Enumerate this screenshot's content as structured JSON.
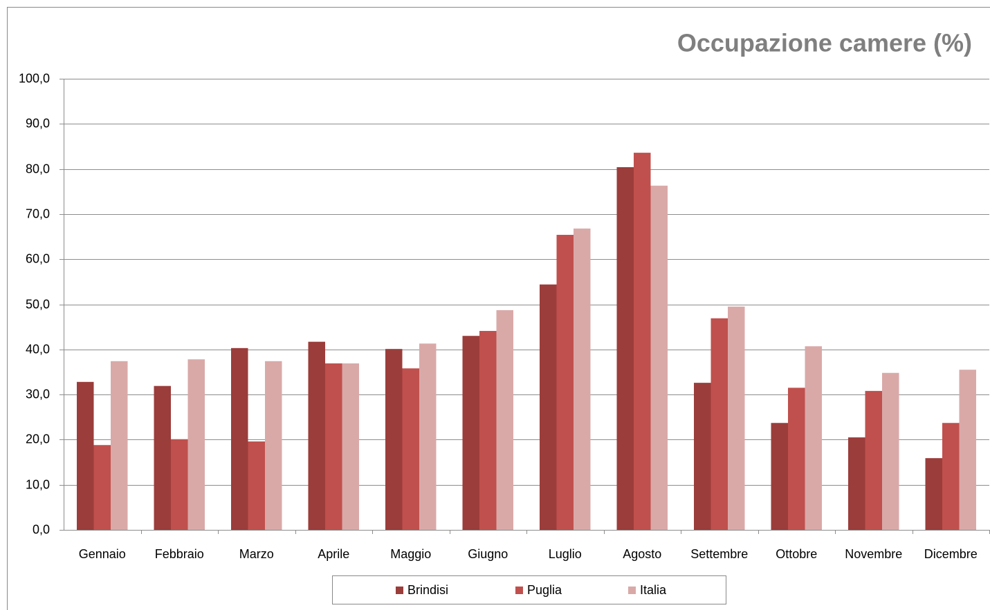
{
  "chart_data": {
    "type": "bar",
    "title": "Occupazione camere  (%)",
    "categories": [
      "Gennaio",
      "Febbraio",
      "Marzo",
      "Aprile",
      "Maggio",
      "Giugno",
      "Luglio",
      "Agosto",
      "Settembre",
      "Ottobre",
      "Novembre",
      "Dicembre"
    ],
    "series": [
      {
        "name": "Brindisi",
        "color": "#9b3d3b",
        "values": [
          32.8,
          31.9,
          40.3,
          41.7,
          40.1,
          43.0,
          54.4,
          80.4,
          32.6,
          23.7,
          20.5,
          15.9
        ]
      },
      {
        "name": "Puglia",
        "color": "#c0504d",
        "values": [
          18.8,
          20.1,
          19.6,
          36.9,
          35.8,
          44.1,
          65.4,
          83.6,
          46.9,
          31.5,
          30.8,
          23.7
        ]
      },
      {
        "name": "Italia",
        "color": "#d9a9a8",
        "values": [
          37.4,
          37.8,
          37.4,
          36.9,
          41.3,
          48.7,
          66.8,
          76.3,
          49.5,
          40.7,
          34.8,
          35.5
        ]
      }
    ],
    "ylim": [
      0,
      100
    ],
    "yticks": [
      {
        "value": 0,
        "label": "0,0"
      },
      {
        "value": 10,
        "label": "10,0"
      },
      {
        "value": 20,
        "label": "20,0"
      },
      {
        "value": 30,
        "label": "30,0"
      },
      {
        "value": 40,
        "label": "40,0"
      },
      {
        "value": 50,
        "label": "50,0"
      },
      {
        "value": 60,
        "label": "60,0"
      },
      {
        "value": 70,
        "label": "70,0"
      },
      {
        "value": 80,
        "label": "80,0"
      },
      {
        "value": 90,
        "label": "90,0"
      },
      {
        "value": 100,
        "label": "100,0"
      }
    ],
    "grid": true,
    "legend": "bottom"
  }
}
